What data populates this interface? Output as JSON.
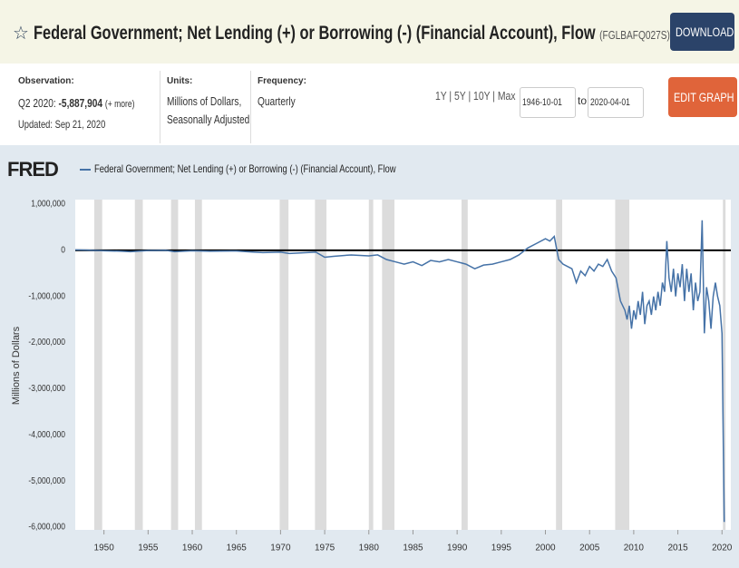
{
  "header": {
    "title": "Federal Government; Net Lending (+) or Borrowing (-) (Financial Account), Flow",
    "series_id": "(FGLBAFQ027S)",
    "download": "DOWNLOAD"
  },
  "info": {
    "observation_label": "Observation:",
    "observation_period": "Q2 2020:",
    "observation_value": "-5,887,904",
    "more": "(+ more)",
    "updated": "Updated: Sep 21, 2020",
    "units_label": "Units:",
    "units_line1": "Millions of Dollars,",
    "units_line2": "Seasonally Adjusted",
    "frequency_label": "Frequency:",
    "frequency": "Quarterly"
  },
  "controls": {
    "ranges": [
      "1Y",
      "5Y",
      "10Y",
      "Max"
    ],
    "start": "1946-10-01",
    "to": "to",
    "end": "2020-04-01",
    "edit": "EDIT GRAPH"
  },
  "chart_data": {
    "type": "line",
    "logo": "FRED",
    "ylabel": "Millions of Dollars",
    "xlim": [
      1946.75,
      2021
    ],
    "xticks": [
      1950,
      1955,
      1960,
      1965,
      1970,
      1975,
      1980,
      1985,
      1990,
      1995,
      2000,
      2005,
      2010,
      2015,
      2020
    ],
    "ylim": [
      -6000000,
      1000000
    ],
    "yticks": [
      {
        "value": 1000000,
        "label": "1,000,000"
      },
      0,
      {
        "value": -1000000,
        "label": "-1,000,000"
      },
      {
        "value": -2000000,
        "label": "-2,000,000"
      },
      {
        "value": -3000000,
        "label": "-3,000,000"
      },
      {
        "value": -4000000,
        "label": "-4,000,000"
      },
      {
        "value": -5000000,
        "label": "-5,000,000"
      },
      {
        "value": -6000000,
        "label": "-6,000,000"
      }
    ],
    "recessions": [
      [
        1948.9,
        1949.8
      ],
      [
        1953.5,
        1954.4
      ],
      [
        1957.6,
        1958.4
      ],
      [
        1960.3,
        1961.1
      ],
      [
        1969.9,
        1970.9
      ],
      [
        1973.9,
        1975.2
      ],
      [
        1980,
        1980.5
      ],
      [
        1981.5,
        1982.9
      ],
      [
        1990.5,
        1991.2
      ],
      [
        2001.2,
        2001.9
      ],
      [
        2007.9,
        2009.5
      ],
      [
        2020.1,
        2020.4
      ]
    ],
    "x": [
      1946.75,
      1948,
      1950,
      1952,
      1953,
      1955,
      1957,
      1958,
      1960,
      1962,
      1965,
      1967,
      1968,
      1970,
      1971,
      1972,
      1974,
      1975,
      1976,
      1978,
      1980,
      1981,
      1982,
      1983,
      1984,
      1985,
      1986,
      1987,
      1988,
      1989,
      1990,
      1991,
      1992,
      1993,
      1994,
      1995,
      1996,
      1997,
      1998,
      1999,
      2000,
      2000.5,
      2001,
      2001.5,
      2002,
      2003,
      2003.5,
      2004,
      2004.5,
      2005,
      2005.5,
      2006,
      2006.5,
      2007,
      2007.5,
      2008,
      2008.5,
      2009,
      2009.25,
      2009.5,
      2009.75,
      2010,
      2010.25,
      2010.5,
      2010.75,
      2011,
      2011.25,
      2011.5,
      2011.75,
      2012,
      2012.25,
      2012.5,
      2012.75,
      2013,
      2013.25,
      2013.5,
      2013.75,
      2014,
      2014.25,
      2014.5,
      2014.75,
      2015,
      2015.25,
      2015.5,
      2015.75,
      2016,
      2016.25,
      2016.5,
      2016.75,
      2017,
      2017.25,
      2017.5,
      2017.75,
      2018,
      2018.25,
      2018.5,
      2018.75,
      2019,
      2019.25,
      2019.5,
      2019.75,
      2020,
      2020.25
    ],
    "series": [
      {
        "name": "Federal Government; Net Lending (+) or Borrowing (-) (Financial Account), Flow",
        "color": "#4572a7",
        "values": [
          10000,
          5000,
          -10000,
          -20000,
          -30000,
          -5000,
          0,
          -30000,
          -10000,
          -20000,
          -15000,
          -40000,
          -50000,
          -40000,
          -70000,
          -60000,
          -40000,
          -150000,
          -130000,
          -100000,
          -120000,
          -100000,
          -200000,
          -250000,
          -300000,
          -250000,
          -330000,
          -220000,
          -250000,
          -200000,
          -250000,
          -300000,
          -400000,
          -320000,
          -300000,
          -250000,
          -200000,
          -100000,
          50000,
          150000,
          250000,
          200000,
          300000,
          -200000,
          -300000,
          -400000,
          -700000,
          -450000,
          -550000,
          -350000,
          -450000,
          -300000,
          -350000,
          -200000,
          -450000,
          -600000,
          -1100000,
          -1300000,
          -1500000,
          -1200000,
          -1700000,
          -1300000,
          -1500000,
          -1100000,
          -1400000,
          -900000,
          -1600000,
          -1200000,
          -1100000,
          -1400000,
          -1000000,
          -1300000,
          -900000,
          -1200000,
          -700000,
          -900000,
          200000,
          -600000,
          -900000,
          -400000,
          -1000000,
          -500000,
          -800000,
          -300000,
          -1100000,
          -400000,
          -900000,
          -500000,
          -1300000,
          -700000,
          -1100000,
          -900000,
          650000,
          -1800000,
          -800000,
          -1100000,
          -1700000,
          -1000000,
          -700000,
          -1000000,
          -1200000,
          -1800000,
          -5887904
        ]
      }
    ]
  }
}
